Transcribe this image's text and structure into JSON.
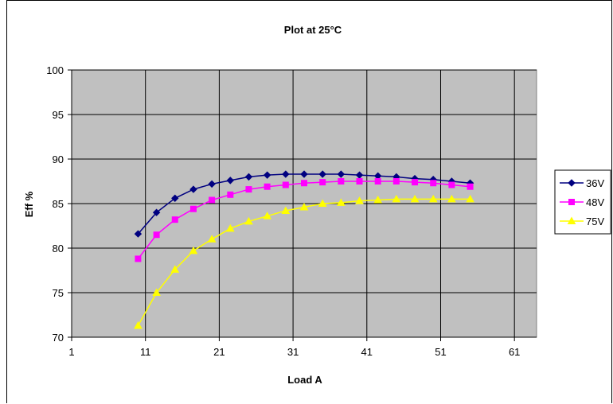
{
  "chart_data": {
    "type": "line",
    "title": "Plot at 25°C",
    "xlabel": "Load A",
    "ylabel": "Eff %",
    "xlim": [
      1,
      64
    ],
    "ylim": [
      70,
      100
    ],
    "xticks": [
      1,
      11,
      21,
      31,
      41,
      51,
      61
    ],
    "yticks": [
      70,
      75,
      80,
      85,
      90,
      95,
      100
    ],
    "grid": true,
    "legend_position": "right",
    "series": [
      {
        "name": "36V",
        "color": "#000080",
        "marker": "diamond",
        "x": [
          10,
          12.5,
          15,
          17.5,
          20,
          22.5,
          25,
          27.5,
          30,
          32.5,
          35,
          37.5,
          40,
          42.5,
          45,
          47.5,
          50,
          52.5,
          55
        ],
        "y": [
          81.6,
          84.0,
          85.6,
          86.6,
          87.2,
          87.6,
          88.0,
          88.2,
          88.3,
          88.3,
          88.3,
          88.3,
          88.2,
          88.1,
          88.0,
          87.8,
          87.7,
          87.5,
          87.3
        ]
      },
      {
        "name": "48V",
        "color": "#ff00ff",
        "marker": "square",
        "x": [
          10,
          12.5,
          15,
          17.5,
          20,
          22.5,
          25,
          27.5,
          30,
          32.5,
          35,
          37.5,
          40,
          42.5,
          45,
          47.5,
          50,
          52.5,
          55
        ],
        "y": [
          78.8,
          81.5,
          83.2,
          84.4,
          85.4,
          86.0,
          86.6,
          86.9,
          87.1,
          87.3,
          87.4,
          87.5,
          87.5,
          87.5,
          87.5,
          87.4,
          87.3,
          87.1,
          86.9
        ]
      },
      {
        "name": "75V",
        "color": "#ffff00",
        "marker": "triangle",
        "x": [
          10,
          12.5,
          15,
          17.5,
          20,
          22.5,
          25,
          27.5,
          30,
          32.5,
          35,
          37.5,
          40,
          42.5,
          45,
          47.5,
          50,
          52.5,
          55
        ],
        "y": [
          71.3,
          75.0,
          77.6,
          79.7,
          81.0,
          82.2,
          83.0,
          83.6,
          84.2,
          84.6,
          85.0,
          85.1,
          85.3,
          85.4,
          85.5,
          85.5,
          85.5,
          85.5,
          85.5
        ]
      }
    ]
  },
  "colors": {
    "plot_background": "#c0c0c0",
    "grid": "#000000"
  }
}
